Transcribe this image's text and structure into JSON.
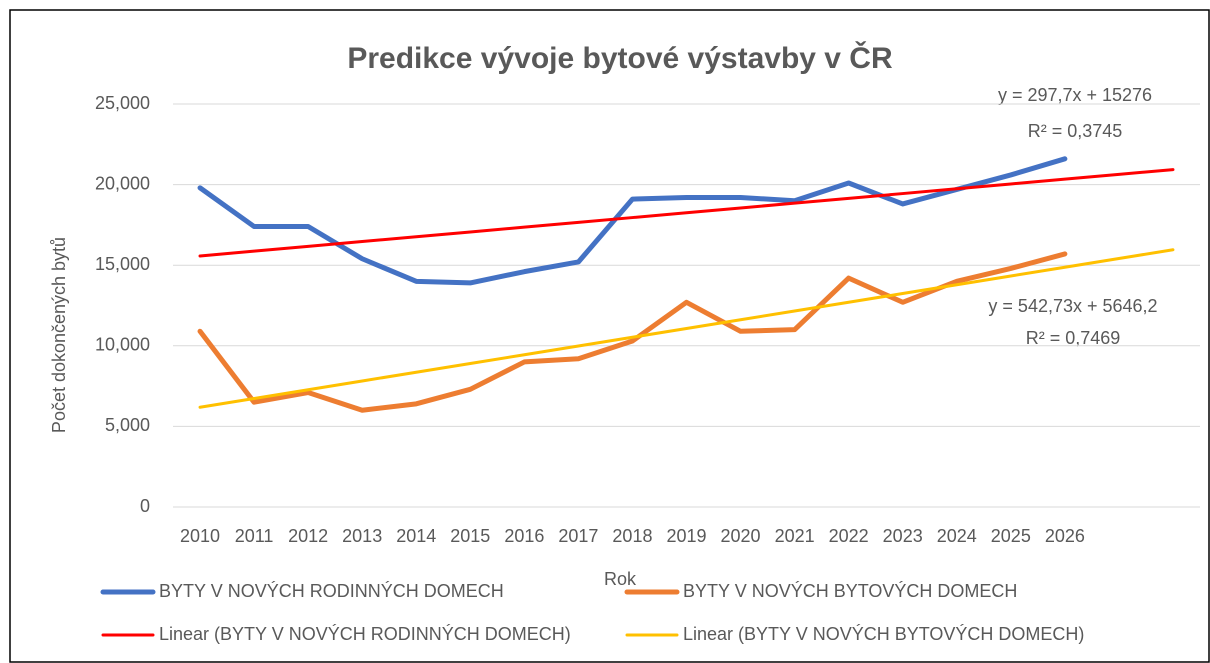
{
  "chart_data": {
    "type": "line",
    "title": "Predikce vývoje bytové výstavby v ČR",
    "x_label": "Rok",
    "y_label": "Počet dokončených bytů",
    "categories": [
      "2010",
      "2011",
      "2012",
      "2013",
      "2014",
      "2015",
      "2016",
      "2017",
      "2018",
      "2019",
      "2020",
      "2021",
      "2022",
      "2023",
      "2024",
      "2025",
      "2026",
      null,
      null
    ],
    "series": [
      {
        "name": "BYTY V NOVÝCH RODINNÝCH DOMECH",
        "color": "#4472c4",
        "values": [
          19800,
          17400,
          17400,
          15400,
          14000,
          13900,
          14600,
          15200,
          19100,
          19200,
          19200,
          19000,
          20100,
          18800,
          19700,
          20600,
          21600,
          null,
          null
        ]
      },
      {
        "name": "BYTY V NOVÝCH BYTOVÝCH DOMECH",
        "color": "#ed7d31",
        "values": [
          10900,
          6500,
          7100,
          6000,
          6400,
          7300,
          9000,
          9200,
          10300,
          12700,
          10900,
          11000,
          14200,
          12700,
          14000,
          14800,
          15700,
          null,
          null
        ]
      },
      {
        "name": "Linear (BYTY V NOVÝCH RODINNÝCH DOMECH)",
        "color": "#ff0000",
        "values": [
          15573.7,
          15871.4,
          16169.1,
          16466.8,
          16764.5,
          17062.2,
          17359.9,
          17657.6,
          17955.3,
          18253,
          18550.7,
          18848.4,
          19146.1,
          19443.8,
          19741.5,
          20039.2,
          20336.9,
          20634.6,
          20932.3
        ]
      },
      {
        "name": "Linear (BYTY V NOVÝCH BYTOVÝCH DOMECH)",
        "color": "#ffc000",
        "values": [
          6188.93,
          6731.66,
          7274.39,
          7817.12,
          8359.85,
          8902.58,
          9445.31,
          9988.04,
          10530.77,
          11073.5,
          11616.23,
          12158.96,
          12701.69,
          13244.42,
          13787.15,
          14329.88,
          14872.61,
          15415.34,
          15958.07
        ]
      }
    ],
    "annotations": [
      "y = 297,7x + 15276",
      "R² = 0,3745",
      "y = 542,73x + 5646,2",
      "R² = 0,7469"
    ],
    "ylim": [
      0,
      25000
    ],
    "yticks": [
      0,
      {
        "value": 5000,
        "label": "5,000"
      },
      {
        "value": 10000,
        "label": "10,000"
      },
      {
        "value": 15000,
        "label": "15,000"
      },
      {
        "value": 20000,
        "label": "20,000"
      },
      {
        "value": 25000,
        "label": "25,000"
      }
    ],
    "grid": true
  }
}
